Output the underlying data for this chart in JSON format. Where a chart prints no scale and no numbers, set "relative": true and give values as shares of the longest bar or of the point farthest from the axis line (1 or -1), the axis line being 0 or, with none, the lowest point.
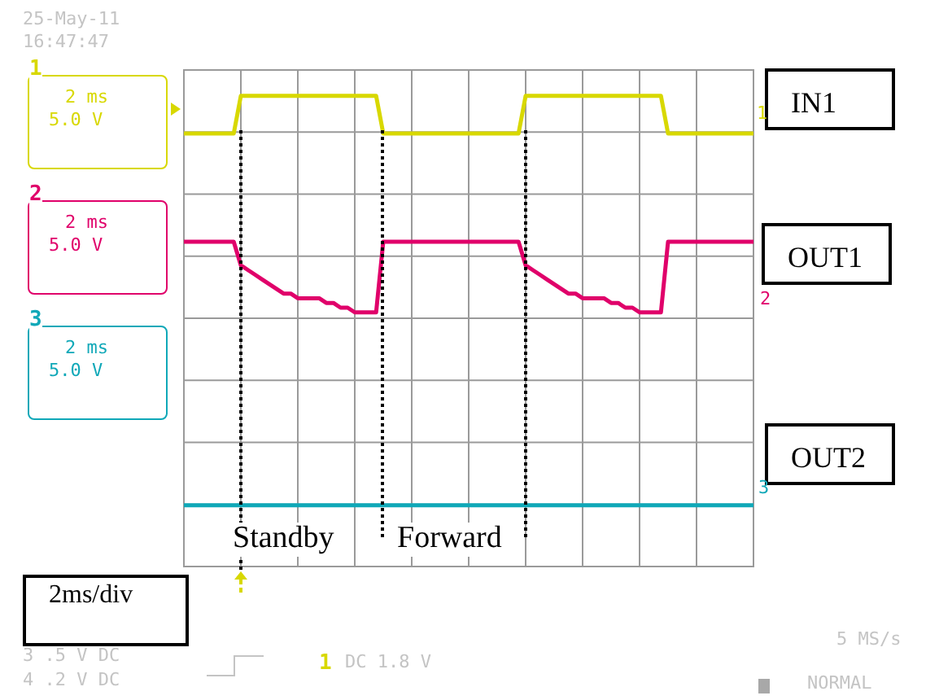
{
  "chart_data": {
    "type": "line",
    "relative": true,
    "grid": true,
    "marker": "none",
    "categories": [
      null,
      null,
      null,
      null,
      null,
      null,
      null,
      null,
      null,
      null,
      null,
      null,
      null,
      null,
      null,
      null,
      null,
      null,
      null,
      null,
      null,
      null,
      null,
      null,
      null,
      null,
      null,
      null,
      null,
      null,
      null,
      null,
      null,
      null,
      null,
      null,
      null,
      null,
      null,
      null,
      null,
      null,
      null,
      null,
      null,
      null,
      null,
      null,
      null,
      null,
      null,
      null,
      null,
      null,
      null,
      null,
      null,
      null,
      null,
      null,
      null,
      null,
      null,
      null,
      null,
      null,
      null,
      null,
      null,
      null,
      null,
      null,
      null,
      null,
      null,
      null,
      null,
      null,
      null,
      null,
      null
    ],
    "series": [
      {
        "name": "IN1",
        "color": "#d8d800",
        "values": [
          0.92,
          0.92,
          0.92,
          0.92,
          0.92,
          0.92,
          0.92,
          0.92,
          1,
          1,
          1,
          1,
          1,
          1,
          1,
          1,
          1,
          1,
          1,
          1,
          1,
          1,
          1,
          1,
          1,
          1,
          1,
          1,
          0.92,
          0.92,
          0.92,
          0.92,
          0.92,
          0.92,
          0.92,
          0.92,
          0.92,
          0.92,
          0.92,
          0.92,
          0.92,
          0.92,
          0.92,
          0.92,
          0.92,
          0.92,
          0.92,
          0.92,
          1,
          1,
          1,
          1,
          1,
          1,
          1,
          1,
          1,
          1,
          1,
          1,
          1,
          1,
          1,
          1,
          1,
          1,
          1,
          1,
          0.92,
          0.92,
          0.92,
          0.92,
          0.92,
          0.92,
          0.92,
          0.92,
          0.92,
          0.92,
          0.92,
          0.92,
          0.92
        ]
      },
      {
        "name": "OUT1",
        "color": "#e0006a",
        "values": [
          0.69,
          0.69,
          0.69,
          0.69,
          0.69,
          0.69,
          0.69,
          0.69,
          0.64,
          0.63,
          0.62,
          0.61,
          0.6,
          0.59,
          0.58,
          0.58,
          0.57,
          0.57,
          0.57,
          0.57,
          0.56,
          0.56,
          0.55,
          0.55,
          0.54,
          0.54,
          0.54,
          0.54,
          0.69,
          0.69,
          0.69,
          0.69,
          0.69,
          0.69,
          0.69,
          0.69,
          0.69,
          0.69,
          0.69,
          0.69,
          0.69,
          0.69,
          0.69,
          0.69,
          0.69,
          0.69,
          0.69,
          0.69,
          0.64,
          0.63,
          0.62,
          0.61,
          0.6,
          0.59,
          0.58,
          0.58,
          0.57,
          0.57,
          0.57,
          0.57,
          0.56,
          0.56,
          0.55,
          0.55,
          0.54,
          0.54,
          0.54,
          0.54,
          0.69,
          0.69,
          0.69,
          0.69,
          0.69,
          0.69,
          0.69,
          0.69,
          0.69,
          0.69,
          0.69,
          0.69,
          0.69
        ]
      },
      {
        "name": "OUT2",
        "color": "#10a8b8",
        "values": [
          0.13,
          0.13,
          0.13,
          0.13,
          0.13,
          0.13,
          0.13,
          0.13,
          0.13,
          0.13,
          0.13,
          0.13,
          0.13,
          0.13,
          0.13,
          0.13,
          0.13,
          0.13,
          0.13,
          0.13,
          0.13,
          0.13,
          0.13,
          0.13,
          0.13,
          0.13,
          0.13,
          0.13,
          0.13,
          0.13,
          0.13,
          0.13,
          0.13,
          0.13,
          0.13,
          0.13,
          0.13,
          0.13,
          0.13,
          0.13,
          0.13,
          0.13,
          0.13,
          0.13,
          0.13,
          0.13,
          0.13,
          0.13,
          0.13,
          0.13,
          0.13,
          0.13,
          0.13,
          0.13,
          0.13,
          0.13,
          0.13,
          0.13,
          0.13,
          0.13,
          0.13,
          0.13,
          0.13,
          0.13,
          0.13,
          0.13,
          0.13,
          0.13,
          0.13,
          0.13,
          0.13,
          0.13,
          0.13,
          0.13,
          0.13,
          0.13,
          0.13,
          0.13,
          0.13,
          0.13,
          0.13
        ]
      }
    ],
    "annotations": [
      "25-May-11",
      "16:47:47",
      "1",
      "2 ms",
      "5.0 V",
      "2",
      "2 ms",
      "5.0 V",
      "3",
      "2 ms",
      "5.0 V",
      "1",
      "2",
      "3",
      "Standby",
      "Forward",
      "2ms/div",
      "3 .5 V DC",
      "4 .2 V DC",
      "1",
      "DC 1.8 V",
      "5 MS/s",
      "NORMAL"
    ]
  }
}
